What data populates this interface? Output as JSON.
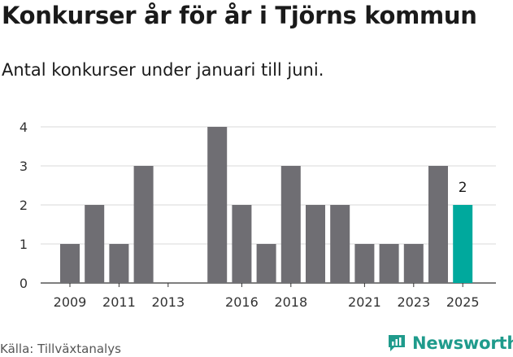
{
  "title": "Konkurser år för år i Tjörns kommun",
  "subtitle": "Antal konkurser under januari till juni.",
  "source": "Källa: Tillväxtanalys",
  "brand": "Newsworthy",
  "colors": {
    "bar": "#6f6e73",
    "highlight": "#00a99d",
    "grid": "#d9d9d9",
    "brand": "#1f9b8c"
  },
  "chart_data": {
    "type": "bar",
    "x": [
      2009,
      2010,
      2011,
      2012,
      2013,
      2014,
      2015,
      2016,
      2017,
      2018,
      2019,
      2020,
      2021,
      2022,
      2023,
      2024,
      2025
    ],
    "values": [
      1,
      2,
      1,
      3,
      0,
      0,
      4,
      2,
      1,
      3,
      2,
      2,
      1,
      1,
      1,
      3,
      2
    ],
    "tick_labels": [
      "2009",
      "2011",
      "2013",
      "2016",
      "2018",
      "2021",
      "2023",
      "2025"
    ],
    "tick_years": [
      2009,
      2011,
      2013,
      2016,
      2018,
      2021,
      2023,
      2025
    ],
    "y_ticks": [
      0,
      1,
      2,
      3,
      4
    ],
    "ylim": [
      0,
      4
    ],
    "highlight_year": 2025,
    "annotation": "2",
    "grid": true
  }
}
